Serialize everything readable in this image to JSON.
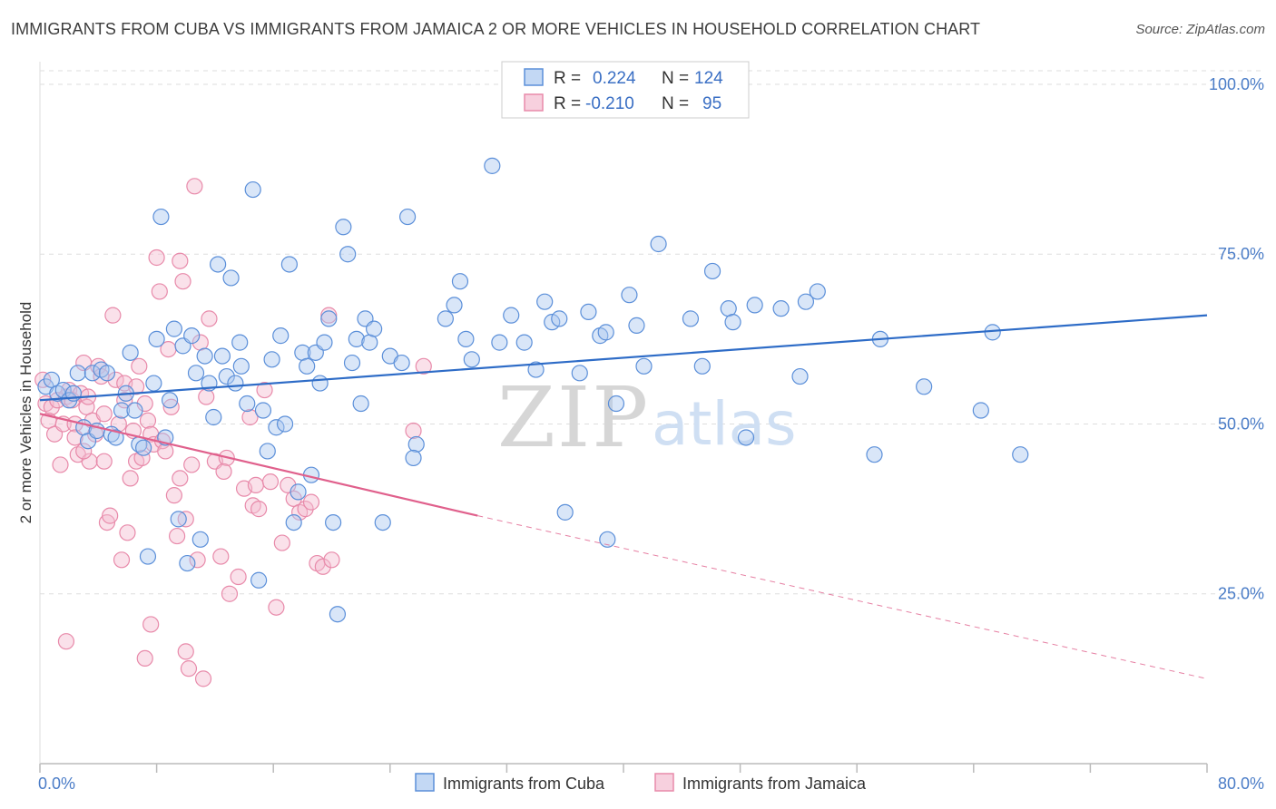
{
  "title": "IMMIGRANTS FROM CUBA VS IMMIGRANTS FROM JAMAICA 2 OR MORE VEHICLES IN HOUSEHOLD CORRELATION CHART",
  "source": "Source: ZipAtlas.com",
  "watermark": {
    "zip": "ZIP",
    "atlas": "atlas"
  },
  "colors": {
    "cuba": "#5b8fd9",
    "cuba_fill": "#aac8f0",
    "cuba_line": "#2e6cc7",
    "jamaica": "#e88aaa",
    "jamaica_fill": "#f4bcd0",
    "jamaica_line": "#e0608c",
    "grid": "#dddddd",
    "tick_label": "#4a7cc7"
  },
  "legend": {
    "rows": [
      {
        "r_label": "R =",
        "r_value": "0.224",
        "n_label": "N =",
        "n_value": "124"
      },
      {
        "r_label": "R =",
        "r_value": "-0.210",
        "n_label": "N =",
        "n_value": "95"
      }
    ]
  },
  "chart_data": {
    "type": "scatter",
    "title": "IMMIGRANTS FROM CUBA VS IMMIGRANTS FROM JAMAICA 2 OR MORE VEHICLES IN HOUSEHOLD CORRELATION CHART",
    "xlabel": "",
    "ylabel": "2 or more Vehicles in Household",
    "xlim": [
      0,
      80
    ],
    "ylim": [
      0,
      102
    ],
    "x_tick_labels": [
      "0.0%",
      "80.0%"
    ],
    "y_ticks": [
      25,
      50,
      75,
      100
    ],
    "y_tick_labels": [
      "25.0%",
      "50.0%",
      "75.0%",
      "100.0%"
    ],
    "grid": true,
    "legend_position": "top-center",
    "series": [
      {
        "name": "Immigrants from Cuba",
        "color": "#5b8fd9",
        "trend": {
          "x": [
            0,
            80
          ],
          "y": [
            53.5,
            66
          ],
          "dashed_to": 80
        },
        "points": [
          [
            0.4,
            55.5
          ],
          [
            0.8,
            56.5
          ],
          [
            1.2,
            54.5
          ],
          [
            1.6,
            55.0
          ],
          [
            2.0,
            53.5
          ],
          [
            2.3,
            54.5
          ],
          [
            2.6,
            57.5
          ],
          [
            3.0,
            49.5
          ],
          [
            3.3,
            47.5
          ],
          [
            3.6,
            57.5
          ],
          [
            3.9,
            49.0
          ],
          [
            4.2,
            58.0
          ],
          [
            4.6,
            57.5
          ],
          [
            4.9,
            48.5
          ],
          [
            5.2,
            48.0
          ],
          [
            5.6,
            52.0
          ],
          [
            5.9,
            54.5
          ],
          [
            6.2,
            60.5
          ],
          [
            6.5,
            52.0
          ],
          [
            6.8,
            47.0
          ],
          [
            7.1,
            46.5
          ],
          [
            7.4,
            30.5
          ],
          [
            7.8,
            56.0
          ],
          [
            8.0,
            62.5
          ],
          [
            8.3,
            80.5
          ],
          [
            8.6,
            48.0
          ],
          [
            8.9,
            53.5
          ],
          [
            9.2,
            64.0
          ],
          [
            9.5,
            36.0
          ],
          [
            9.8,
            61.5
          ],
          [
            10.1,
            29.5
          ],
          [
            10.4,
            63.0
          ],
          [
            10.7,
            57.5
          ],
          [
            11.0,
            33.0
          ],
          [
            11.3,
            60.0
          ],
          [
            11.6,
            56.0
          ],
          [
            11.9,
            51.0
          ],
          [
            12.2,
            73.5
          ],
          [
            12.5,
            60.0
          ],
          [
            12.8,
            57.0
          ],
          [
            13.1,
            71.5
          ],
          [
            13.4,
            56.0
          ],
          [
            13.7,
            62.0
          ],
          [
            13.8,
            58.5
          ],
          [
            14.2,
            53.0
          ],
          [
            14.6,
            84.5
          ],
          [
            15.0,
            27.0
          ],
          [
            15.3,
            52.0
          ],
          [
            15.6,
            46.0
          ],
          [
            15.9,
            59.5
          ],
          [
            16.2,
            49.5
          ],
          [
            16.5,
            63.0
          ],
          [
            16.8,
            50.0
          ],
          [
            17.1,
            73.5
          ],
          [
            17.4,
            35.5
          ],
          [
            17.7,
            40.0
          ],
          [
            18.0,
            60.5
          ],
          [
            18.3,
            58.5
          ],
          [
            18.6,
            42.5
          ],
          [
            18.9,
            60.5
          ],
          [
            19.2,
            56.0
          ],
          [
            19.5,
            62.0
          ],
          [
            19.8,
            65.5
          ],
          [
            20.1,
            35.5
          ],
          [
            20.4,
            22.0
          ],
          [
            20.8,
            79.0
          ],
          [
            21.1,
            75.0
          ],
          [
            21.4,
            59.0
          ],
          [
            21.7,
            62.5
          ],
          [
            22.0,
            53.0
          ],
          [
            22.3,
            65.5
          ],
          [
            22.6,
            62.0
          ],
          [
            22.9,
            64.0
          ],
          [
            23.5,
            35.5
          ],
          [
            24.0,
            60.0
          ],
          [
            24.8,
            59.0
          ],
          [
            25.2,
            80.5
          ],
          [
            25.8,
            47.0
          ],
          [
            25.6,
            45.0
          ],
          [
            27.8,
            65.5
          ],
          [
            28.4,
            67.5
          ],
          [
            28.8,
            71.0
          ],
          [
            29.2,
            62.5
          ],
          [
            29.6,
            59.5
          ],
          [
            31.0,
            88.0
          ],
          [
            31.5,
            62.0
          ],
          [
            32.3,
            66.0
          ],
          [
            33.2,
            62.0
          ],
          [
            34.0,
            58.0
          ],
          [
            34.6,
            68.0
          ],
          [
            35.1,
            65.0
          ],
          [
            35.6,
            65.5
          ],
          [
            36.0,
            37.0
          ],
          [
            37.0,
            57.5
          ],
          [
            37.6,
            66.5
          ],
          [
            38.4,
            63.0
          ],
          [
            38.8,
            63.5
          ],
          [
            38.9,
            33.0
          ],
          [
            39.5,
            53.0
          ],
          [
            40.4,
            69.0
          ],
          [
            40.9,
            64.5
          ],
          [
            41.4,
            58.5
          ],
          [
            42.4,
            76.5
          ],
          [
            44.6,
            65.5
          ],
          [
            45.4,
            58.5
          ],
          [
            46.1,
            72.5
          ],
          [
            47.2,
            67.0
          ],
          [
            47.5,
            65.0
          ],
          [
            48.4,
            48.0
          ],
          [
            49.0,
            67.5
          ],
          [
            50.8,
            67.0
          ],
          [
            52.1,
            57.0
          ],
          [
            52.5,
            68.0
          ],
          [
            53.3,
            69.5
          ],
          [
            57.2,
            45.5
          ],
          [
            57.6,
            62.5
          ],
          [
            60.6,
            55.5
          ],
          [
            64.5,
            52.0
          ],
          [
            65.3,
            63.5
          ],
          [
            67.2,
            45.5
          ]
        ]
      },
      {
        "name": "Immigrants from Jamaica",
        "color": "#e88aaa",
        "trend": {
          "x": [
            0,
            30
          ],
          "y": [
            51.5,
            36.5
          ],
          "dashed_to": 80,
          "dashed_end_y": 12.5
        },
        "points": [
          [
            0.2,
            56.5
          ],
          [
            0.4,
            53.0
          ],
          [
            0.6,
            50.5
          ],
          [
            0.8,
            52.5
          ],
          [
            1.0,
            48.5
          ],
          [
            1.2,
            53.5
          ],
          [
            1.4,
            44.0
          ],
          [
            1.6,
            50.0
          ],
          [
            1.8,
            54.0
          ],
          [
            2.0,
            55.0
          ],
          [
            2.2,
            53.5
          ],
          [
            2.4,
            50.0
          ],
          [
            2.6,
            45.5
          ],
          [
            2.8,
            54.5
          ],
          [
            3.0,
            59.0
          ],
          [
            3.2,
            52.5
          ],
          [
            3.4,
            44.5
          ],
          [
            3.6,
            50.5
          ],
          [
            3.8,
            48.5
          ],
          [
            4.0,
            58.5
          ],
          [
            4.2,
            57.0
          ],
          [
            4.4,
            44.5
          ],
          [
            4.6,
            35.5
          ],
          [
            4.8,
            36.5
          ],
          [
            5.0,
            66.0
          ],
          [
            5.2,
            56.5
          ],
          [
            5.4,
            50.0
          ],
          [
            5.6,
            30.0
          ],
          [
            5.8,
            56.0
          ],
          [
            6.0,
            34.0
          ],
          [
            6.2,
            42.0
          ],
          [
            6.4,
            49.0
          ],
          [
            6.6,
            44.5
          ],
          [
            6.8,
            58.5
          ],
          [
            7.0,
            45.0
          ],
          [
            7.2,
            53.0
          ],
          [
            7.4,
            50.5
          ],
          [
            7.6,
            48.5
          ],
          [
            7.8,
            47.0
          ],
          [
            8.0,
            74.5
          ],
          [
            8.2,
            69.5
          ],
          [
            8.4,
            47.5
          ],
          [
            8.6,
            46.0
          ],
          [
            8.8,
            61.0
          ],
          [
            9.0,
            52.5
          ],
          [
            9.2,
            39.5
          ],
          [
            9.4,
            33.5
          ],
          [
            9.6,
            74.0
          ],
          [
            9.8,
            71.0
          ],
          [
            10.0,
            16.5
          ],
          [
            10.2,
            14.0
          ],
          [
            10.4,
            44.0
          ],
          [
            10.6,
            85.0
          ],
          [
            10.8,
            30.0
          ],
          [
            11.0,
            62.0
          ],
          [
            11.2,
            12.5
          ],
          [
            11.4,
            54.0
          ],
          [
            11.6,
            65.5
          ],
          [
            12.0,
            44.5
          ],
          [
            12.4,
            30.5
          ],
          [
            12.8,
            45.0
          ],
          [
            13.0,
            25.0
          ],
          [
            13.6,
            27.5
          ],
          [
            14.0,
            40.5
          ],
          [
            14.4,
            51.0
          ],
          [
            14.6,
            38.0
          ],
          [
            14.8,
            41.0
          ],
          [
            15.0,
            37.5
          ],
          [
            15.4,
            55.0
          ],
          [
            15.8,
            41.5
          ],
          [
            16.2,
            23.0
          ],
          [
            16.6,
            32.5
          ],
          [
            17.0,
            41.0
          ],
          [
            17.4,
            39.0
          ],
          [
            17.8,
            37.0
          ],
          [
            18.2,
            37.5
          ],
          [
            18.6,
            38.5
          ],
          [
            19.0,
            29.5
          ],
          [
            19.4,
            29.0
          ],
          [
            19.8,
            66.0
          ],
          [
            20.0,
            30.0
          ],
          [
            25.6,
            49.0
          ],
          [
            3.3,
            54.0
          ],
          [
            4.4,
            51.5
          ],
          [
            5.8,
            53.5
          ],
          [
            6.6,
            55.5
          ],
          [
            7.2,
            15.5
          ],
          [
            1.8,
            18.0
          ],
          [
            2.4,
            48.0
          ],
          [
            3.0,
            46.0
          ],
          [
            9.6,
            42.0
          ],
          [
            12.6,
            43.0
          ],
          [
            10.0,
            36.0
          ],
          [
            7.6,
            20.5
          ],
          [
            26.3,
            58.5
          ]
        ]
      }
    ]
  },
  "bottom_legend": {
    "items": [
      {
        "label": "Immigrants from Cuba"
      },
      {
        "label": "Immigrants from Jamaica"
      }
    ]
  }
}
